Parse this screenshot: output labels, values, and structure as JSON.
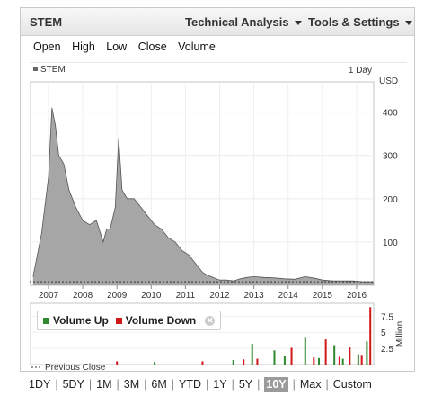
{
  "header": {
    "symbol": "STEM",
    "technical_analysis": "Technical Analysis",
    "tools_settings": "Tools & Settings"
  },
  "ohlc_options": [
    "Open",
    "High",
    "Low",
    "Close",
    "Volume"
  ],
  "price_panel": {
    "legend_label": "STEM",
    "interval": "1 Day",
    "currency": "USD",
    "previous_close_label": "Previous Close"
  },
  "volume_panel": {
    "volume_up": "Volume Up",
    "volume_down": "Volume Down",
    "unit": "Million"
  },
  "ranges": [
    "1DY",
    "5DY",
    "1M",
    "3M",
    "6M",
    "YTD",
    "1Y",
    "5Y",
    "10Y",
    "Max",
    "Custom"
  ],
  "selected_range": "10Y",
  "colors": {
    "area_fill": "#a6a6a6",
    "area_line": "#555555",
    "volume_up": "#2f8a2f",
    "volume_down": "#d01818"
  },
  "chart_data": [
    {
      "type": "area",
      "series": [
        {
          "name": "STEM",
          "x": [
            2006.55,
            2006.8,
            2007.0,
            2007.1,
            2007.2,
            2007.3,
            2007.45,
            2007.6,
            2007.8,
            2008.0,
            2008.2,
            2008.4,
            2008.6,
            2008.7,
            2008.8,
            2008.95,
            2009.05,
            2009.15,
            2009.3,
            2009.5,
            2009.7,
            2009.9,
            2010.1,
            2010.3,
            2010.5,
            2010.7,
            2010.9,
            2011.1,
            2011.3,
            2011.5,
            2011.6,
            2011.75,
            2011.9,
            2012.0,
            2012.2,
            2012.4,
            2012.6,
            2012.8,
            2013.0,
            2013.3,
            2013.6,
            2013.9,
            2014.2,
            2014.5,
            2014.8,
            2015.0,
            2015.3,
            2015.6,
            2015.9,
            2016.2,
            2016.5
          ],
          "y": [
            20,
            120,
            250,
            410,
            370,
            300,
            280,
            220,
            180,
            150,
            140,
            150,
            100,
            130,
            130,
            180,
            340,
            220,
            200,
            200,
            180,
            160,
            140,
            130,
            110,
            100,
            80,
            70,
            50,
            30,
            25,
            20,
            15,
            12,
            12,
            10,
            15,
            18,
            20,
            18,
            17,
            15,
            14,
            20,
            16,
            12,
            10,
            10,
            10,
            8,
            8
          ]
        }
      ],
      "xticks": [
        "2007",
        "2008",
        "2009",
        "2010",
        "2011",
        "2012",
        "2013",
        "2014",
        "2015",
        "2016"
      ],
      "yticks": [
        100,
        200,
        300,
        400
      ],
      "ylim": [
        0,
        470
      ],
      "ylabel": "USD"
    },
    {
      "type": "bar",
      "series": [
        {
          "name": "Volume Up",
          "x": [
            2010.1,
            2012.4,
            2012.95,
            2013.6,
            2013.9,
            2014.5,
            2014.9,
            2015.35,
            2015.6,
            2016.05,
            2016.3
          ],
          "values": [
            0.4,
            0.7,
            3.2,
            2.2,
            1.3,
            4.3,
            1.0,
            3.0,
            0.9,
            1.6,
            3.6
          ]
        },
        {
          "name": "Volume Down",
          "x": [
            2009.0,
            2011.5,
            2012.7,
            2013.1,
            2014.1,
            2014.75,
            2015.1,
            2015.5,
            2015.8,
            2016.15,
            2016.4
          ],
          "values": [
            0.5,
            0.5,
            0.8,
            0.9,
            2.6,
            1.1,
            3.9,
            1.2,
            2.7,
            1.5,
            8.9
          ]
        }
      ],
      "yticks": [
        2.5,
        5,
        7.5
      ],
      "ylim": [
        0,
        9.5
      ],
      "ylabel": "Million"
    }
  ]
}
